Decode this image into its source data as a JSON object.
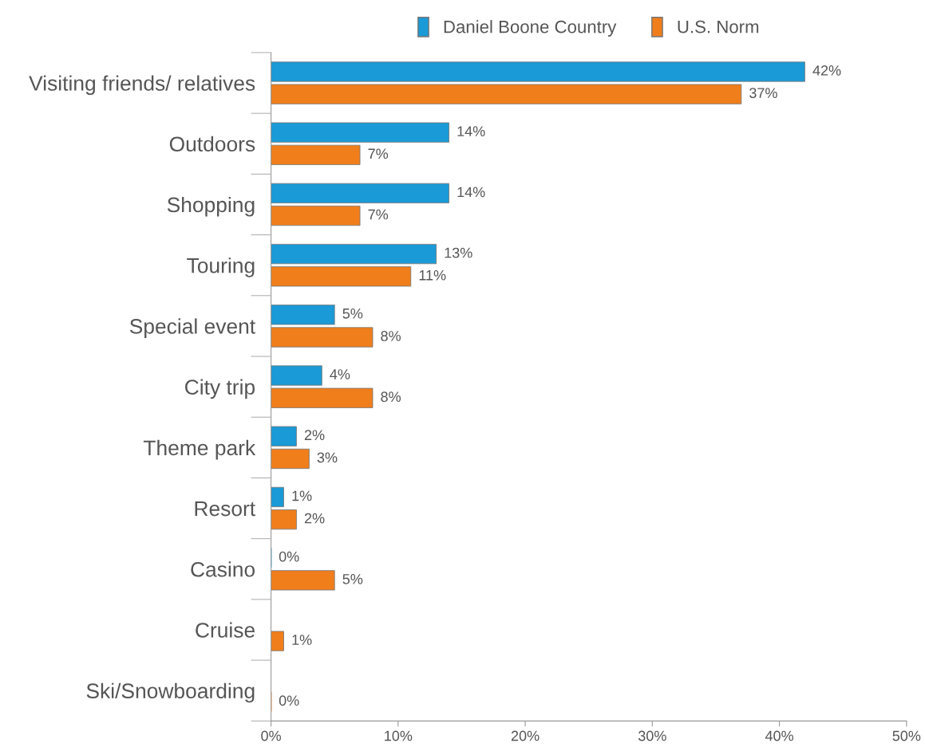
{
  "chart_data": {
    "type": "bar",
    "orientation": "horizontal",
    "categories": [
      "Visiting friends/ relatives",
      "Outdoors",
      "Shopping",
      "Touring",
      "Special event",
      "City trip",
      "Theme park",
      "Resort",
      "Casino",
      "Cruise",
      "Ski/Snowboarding"
    ],
    "series": [
      {
        "name": "Daniel Boone Country",
        "color": "#1a9ad6",
        "values": [
          42,
          14,
          14,
          13,
          5,
          4,
          2,
          1,
          0,
          null,
          null
        ],
        "value_labels": [
          "42%",
          "14%",
          "14%",
          "13%",
          "5%",
          "4%",
          "2%",
          "1%",
          "0%",
          null,
          null
        ]
      },
      {
        "name": "U.S. Norm",
        "color": "#f07e1b",
        "values": [
          37,
          7,
          7,
          11,
          8,
          8,
          3,
          2,
          5,
          1,
          0
        ],
        "value_labels": [
          "37%",
          "7%",
          "7%",
          "11%",
          "8%",
          "8%",
          "3%",
          "2%",
          "5%",
          "1%",
          "0%"
        ]
      }
    ],
    "xlim": [
      0,
      50
    ],
    "xticks": [
      {
        "value": 0,
        "label": "0%"
      },
      {
        "value": 10,
        "label": "10%"
      },
      {
        "value": 20,
        "label": "20%"
      },
      {
        "value": 30,
        "label": "30%"
      },
      {
        "value": 40,
        "label": "40%"
      },
      {
        "value": 50,
        "label": "50%"
      }
    ],
    "legend": "top",
    "grid": false
  }
}
